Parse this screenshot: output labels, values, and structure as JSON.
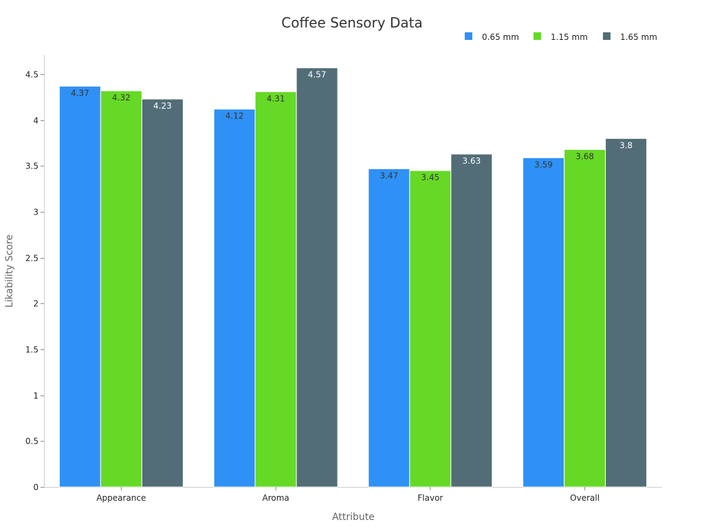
{
  "chart_data": {
    "type": "bar",
    "title": "Coffee Sensory Data",
    "xlabel": "Attribute",
    "ylabel": "Likability Score",
    "categories": [
      "Appearance",
      "Aroma",
      "Flavor",
      "Overall"
    ],
    "series": [
      {
        "name": "0.65 mm",
        "color": "#2f91f5",
        "label_color": "#333333",
        "values": [
          4.37,
          4.12,
          3.47,
          3.59
        ]
      },
      {
        "name": "1.15 mm",
        "color": "#66d926",
        "label_color": "#333333",
        "values": [
          4.32,
          4.31,
          3.45,
          3.68
        ]
      },
      {
        "name": "1.65 mm",
        "color": "#526d77",
        "label_color": "#ffffff",
        "values": [
          4.23,
          4.57,
          3.63,
          3.8
        ]
      }
    ],
    "ylim": [
      0,
      4.8
    ],
    "yticks": [
      0,
      0.5,
      1,
      1.5,
      2,
      2.5,
      3,
      3.5,
      4,
      4.5
    ],
    "ytick_labels": [
      "0",
      "0.5",
      "1",
      "1.5",
      "2",
      "2.5",
      "3",
      "3.5",
      "4",
      "4.5"
    ],
    "grid": false,
    "legend_position": "top-right"
  }
}
